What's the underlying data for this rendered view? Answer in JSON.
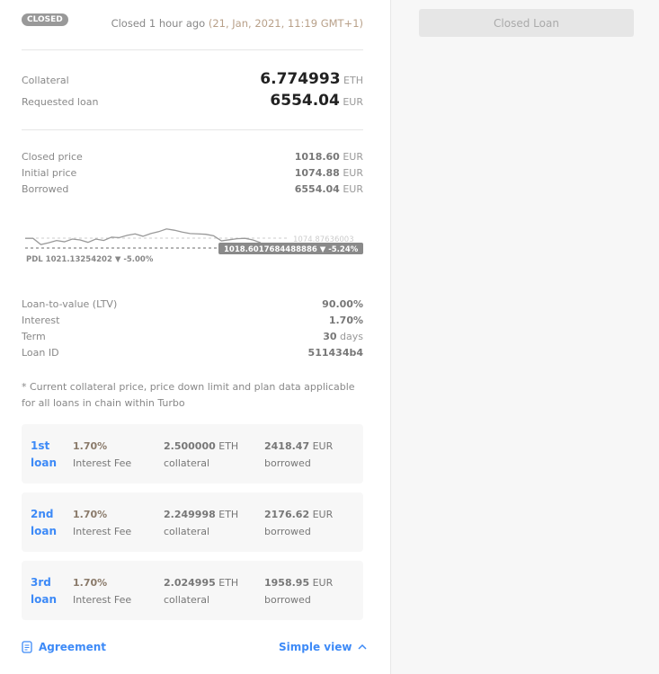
{
  "status_badge": "CLOSED",
  "closed_text": "Closed 1 hour ago",
  "closed_datetime": "(21, Jan, 2021, 11:19 GMT+1)",
  "summary": {
    "collateral_label": "Collateral",
    "collateral_value": "6.774993",
    "collateral_unit": "ETH",
    "loan_label": "Requested loan",
    "loan_value": "6554.04",
    "loan_unit": "EUR"
  },
  "prices": [
    {
      "label": "Closed price",
      "value": "1018.60",
      "unit": "EUR"
    },
    {
      "label": "Initial price",
      "value": "1074.88",
      "unit": "EUR"
    },
    {
      "label": "Borrowed",
      "value": "6554.04",
      "unit": "EUR"
    }
  ],
  "chart": {
    "initial_label": "1074.87636003",
    "current_label": "1018.6017684488886 ▼ -5.24%",
    "pdl_label": "PDL 1021.13254202 ▼ -5.00%",
    "initial": 1074.876,
    "pdl": 1021.13,
    "series": [
      1074,
      1074,
      1040,
      1050,
      1062,
      1055,
      1070,
      1065,
      1052,
      1070,
      1062,
      1080,
      1078,
      1090,
      1098,
      1085,
      1100,
      1110,
      1125,
      1118,
      1108,
      1100,
      1098,
      1096,
      1088,
      1060,
      1066,
      1072,
      1074,
      1065,
      1050
    ]
  },
  "details": [
    {
      "label": "Loan-to-value (LTV)",
      "value": "90.00%",
      "unit": ""
    },
    {
      "label": "Interest",
      "value": "1.70%",
      "unit": ""
    },
    {
      "label": "Term",
      "value": "30",
      "unit": "days"
    },
    {
      "label": "Loan ID",
      "value": "511434b4",
      "unit": ""
    }
  ],
  "note": "* Current collateral price, price down limit and plan data applicable for all loans in chain within Turbo",
  "loans": [
    {
      "name1": "1st",
      "name2": "loan",
      "rate": "1.70%",
      "rate_label": "Interest Fee",
      "collateral": "2.500000",
      "collateral_unit": "ETH",
      "collateral_label": "collateral",
      "borrowed": "2418.47",
      "borrowed_unit": "EUR",
      "borrowed_label": "borrowed"
    },
    {
      "name1": "2nd",
      "name2": "loan",
      "rate": "1.70%",
      "rate_label": "Interest Fee",
      "collateral": "2.249998",
      "collateral_unit": "ETH",
      "collateral_label": "collateral",
      "borrowed": "2176.62",
      "borrowed_unit": "EUR",
      "borrowed_label": "borrowed"
    },
    {
      "name1": "3rd",
      "name2": "loan",
      "rate": "1.70%",
      "rate_label": "Interest Fee",
      "collateral": "2.024995",
      "collateral_unit": "ETH",
      "collateral_label": "collateral",
      "borrowed": "1958.95",
      "borrowed_unit": "EUR",
      "borrowed_label": "borrowed"
    }
  ],
  "footer": {
    "agreement": "Agreement",
    "simple_view": "Simple view"
  },
  "right": {
    "button": "Closed Loan"
  }
}
